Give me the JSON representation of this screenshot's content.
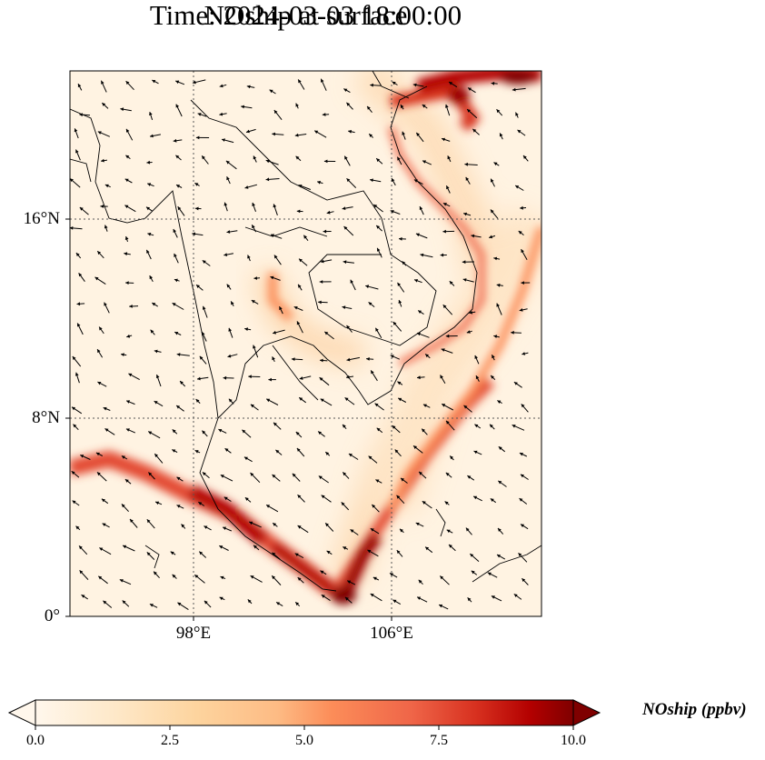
{
  "title_line1": "NOship at surface",
  "title_line2": "Time: 2024-03-03 18:00:00",
  "lat_labels": [
    "16°N",
    "8°N",
    "0°"
  ],
  "lon_labels": [
    "98°E",
    "106°E"
  ],
  "colorbar": {
    "label": "NOship (ppbv)",
    "ticks": [
      "0.0",
      "2.5",
      "5.0",
      "7.5",
      "10.0"
    ],
    "range": [
      0,
      10
    ],
    "colormap": "OrRd",
    "extend": "both"
  },
  "colors": {
    "low": "#fff7ec",
    "mid": "#fc8d59",
    "high": "#b30000",
    "max": "#7f0000",
    "coast": "#000000",
    "arrow": "#000000"
  },
  "map": {
    "lon_range": [
      93,
      112
    ],
    "lat_range": [
      0,
      22
    ],
    "gridlines_lon": [
      98,
      106
    ],
    "gridlines_lat": [
      8,
      16
    ],
    "gridline_style": "dotted"
  }
}
